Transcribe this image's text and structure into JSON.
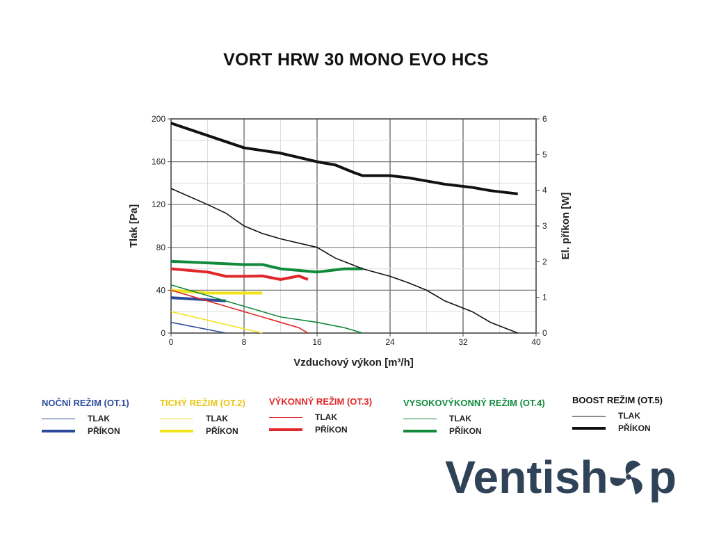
{
  "chart_data": {
    "type": "line",
    "title": "VORT HRW 30 MONO EVO HCS",
    "xlabel": "Vzduchový výkon [m³/h]",
    "ylabel": "Tlak [Pa]",
    "y2label": "El. příkon [W]",
    "xlim": [
      0,
      40
    ],
    "ylim": [
      0,
      200
    ],
    "y2lim": [
      0,
      6
    ],
    "xticks": [
      0,
      8,
      16,
      24,
      32,
      40
    ],
    "yticks": [
      0,
      40,
      80,
      120,
      160,
      200
    ],
    "y2ticks": [
      0,
      1,
      2,
      3,
      4,
      5,
      6
    ],
    "grid": true,
    "series": [
      {
        "name": "NOČNÍ REŽIM (OT.1)",
        "color": "#2b4a9b",
        "tlak": [
          [
            0,
            10
          ],
          [
            6,
            0
          ]
        ],
        "prikon": [
          [
            0,
            0.99
          ],
          [
            6,
            0.9
          ]
        ]
      },
      {
        "name": "TICHÝ REŽIM (OT.2)",
        "color": "#f2e21a",
        "tlak": [
          [
            0,
            20
          ],
          [
            10,
            0
          ]
        ],
        "prikon": [
          [
            0,
            1.2
          ],
          [
            4,
            1.12
          ],
          [
            10,
            1.12
          ]
        ]
      },
      {
        "name": "VÝKONNÝ REŽIM (OT.3)",
        "color": "#e0282a",
        "tlak": [
          [
            0,
            40
          ],
          [
            14,
            5
          ],
          [
            15,
            0
          ]
        ],
        "prikon": [
          [
            0,
            1.8
          ],
          [
            4,
            1.71
          ],
          [
            6,
            1.59
          ],
          [
            8,
            1.59
          ],
          [
            10,
            1.6
          ],
          [
            12,
            1.5
          ],
          [
            14,
            1.6
          ],
          [
            15,
            1.5
          ]
        ]
      },
      {
        "name": "VYSOKOVÝKONNÝ REŽIM (OT.4)",
        "color": "#118a3c",
        "tlak": [
          [
            0,
            45
          ],
          [
            8,
            25
          ],
          [
            12,
            15
          ],
          [
            16,
            10
          ],
          [
            19,
            5
          ],
          [
            21,
            0
          ]
        ],
        "prikon": [
          [
            0,
            2.01
          ],
          [
            8,
            1.92
          ],
          [
            10,
            1.92
          ],
          [
            12,
            1.8
          ],
          [
            16,
            1.71
          ],
          [
            19,
            1.8
          ],
          [
            21,
            1.8
          ]
        ]
      },
      {
        "name": "BOOST REŽIM (OT.5)",
        "color": "#111111",
        "tlak": [
          [
            0,
            135
          ],
          [
            4,
            120
          ],
          [
            6,
            112
          ],
          [
            8,
            100
          ],
          [
            10,
            93
          ],
          [
            12,
            88
          ],
          [
            16,
            80
          ],
          [
            18,
            70
          ],
          [
            21,
            60
          ],
          [
            24,
            53
          ],
          [
            26,
            47
          ],
          [
            28,
            40
          ],
          [
            30,
            30
          ],
          [
            33,
            20
          ],
          [
            35,
            10
          ],
          [
            38,
            0
          ]
        ],
        "prikon": [
          [
            0,
            5.88
          ],
          [
            8,
            5.19
          ],
          [
            12,
            5.04
          ],
          [
            16,
            4.8
          ],
          [
            18,
            4.71
          ],
          [
            20,
            4.5
          ],
          [
            21,
            4.41
          ],
          [
            24,
            4.41
          ],
          [
            26,
            4.35
          ],
          [
            28,
            4.26
          ],
          [
            30,
            4.17
          ],
          [
            33,
            4.08
          ],
          [
            35,
            3.99
          ],
          [
            38,
            3.9
          ]
        ]
      }
    ]
  },
  "legend": {
    "tlak": "TLAK",
    "prikon": "PŘÍKON"
  },
  "logo": {
    "text_before": "Ventish",
    "text_after": "p"
  }
}
